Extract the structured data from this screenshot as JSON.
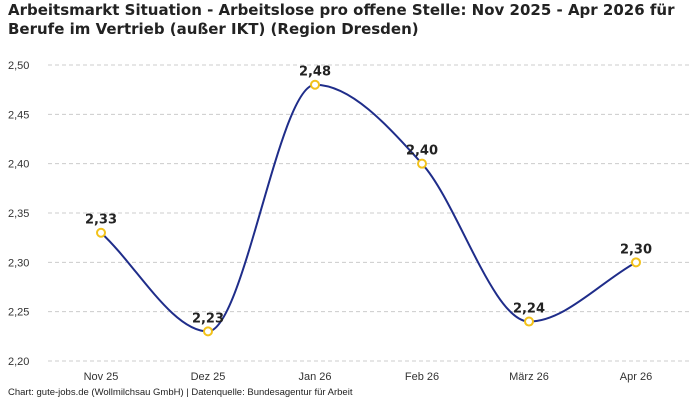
{
  "title_lines": [
    "Arbeitsmarkt Situation - Arbeitslose pro offene Stelle: Nov 2025 - Apr 2026 für",
    "Berufe im Vertrieb (außer IKT) (Region Dresden)"
  ],
  "footer": "Chart: gute-jobs.de (Wollmilchsau GmbH) | Datenquelle: Bundesagentur für Arbeit",
  "colors": {
    "line": "#1f2d8a",
    "marker": "#f2c21b",
    "grid": "#cccccc"
  },
  "chart_data": {
    "type": "line",
    "title": "Arbeitsmarkt Situation - Arbeitslose pro offene Stelle: Nov 2025 - Apr 2026 für Berufe im Vertrieb (außer IKT) (Region Dresden)",
    "categories": [
      "Nov 25",
      "Dez 25",
      "Jan 26",
      "Feb 26",
      "März 26",
      "Apr 26"
    ],
    "values": [
      2.33,
      2.23,
      2.48,
      2.4,
      2.24,
      2.3
    ],
    "data_labels": [
      "2,33",
      "2,23",
      "2,48",
      "2,40",
      "2,24",
      "2,30"
    ],
    "y_ticks": [
      "2,20",
      "2,25",
      "2,30",
      "2,35",
      "2,40",
      "2,45",
      "2,50"
    ],
    "ylim": [
      2.2,
      2.5
    ],
    "grid": "horizontal dashed",
    "smooth": true,
    "xlabel": "",
    "ylabel": ""
  }
}
